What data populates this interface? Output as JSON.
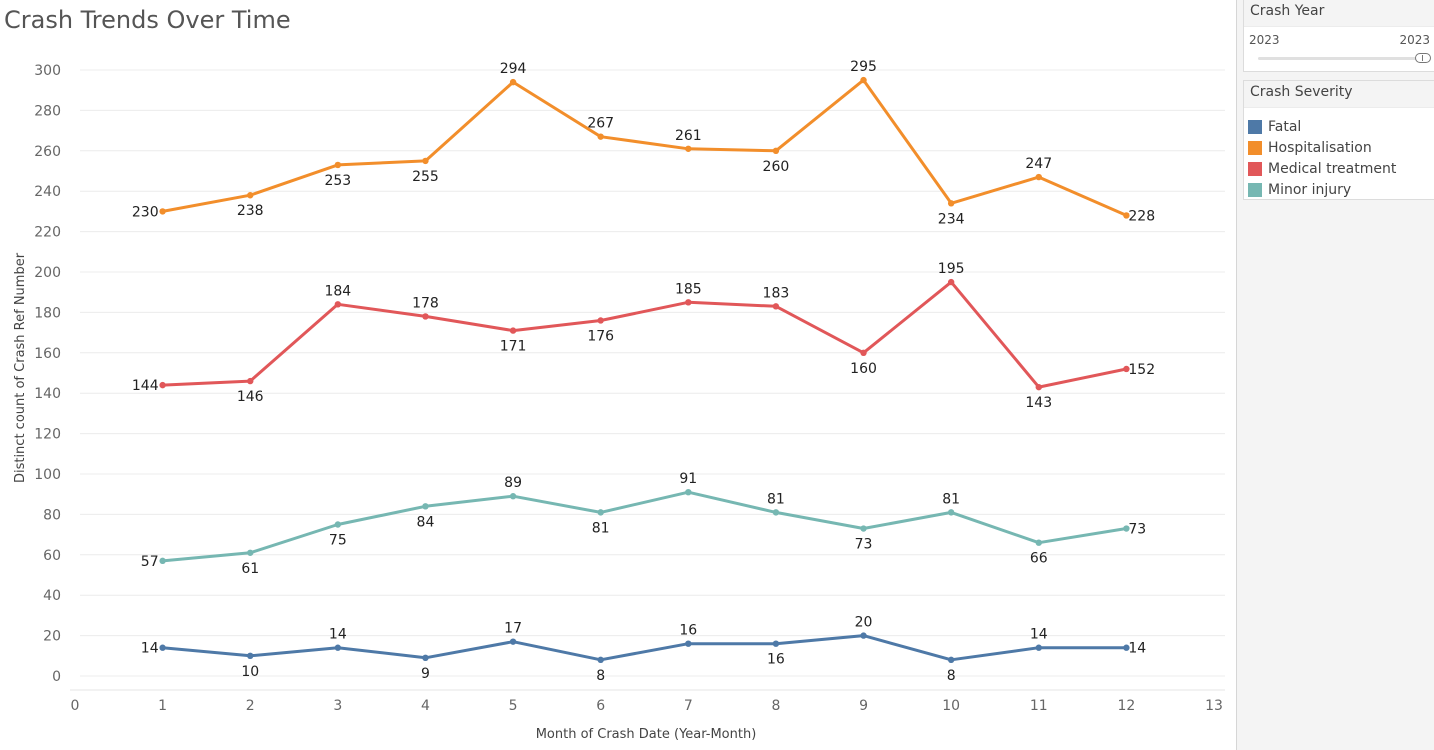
{
  "title": "Crash Trends Over Time",
  "filter": {
    "title": "Crash Year",
    "min_label": "2023",
    "max_label": "2023"
  },
  "legend": {
    "title": "Crash Severity",
    "items": [
      {
        "label": "Fatal",
        "color": "#4e79a7"
      },
      {
        "label": "Hospitalisation",
        "color": "#f28e2b"
      },
      {
        "label": "Medical treatment",
        "color": "#e15759"
      },
      {
        "label": "Minor injury",
        "color": "#76b7b2"
      }
    ]
  },
  "chart_data": {
    "type": "line",
    "xlabel": "Month of Crash Date (Year-Month)",
    "ylabel": "Distinct count of Crash Ref Number",
    "xlim": [
      0,
      13
    ],
    "ylim": [
      0,
      300
    ],
    "x_ticks": [
      0,
      1,
      2,
      3,
      4,
      5,
      6,
      7,
      8,
      9,
      10,
      11,
      12,
      13
    ],
    "y_ticks": [
      0,
      20,
      40,
      60,
      80,
      100,
      120,
      140,
      160,
      180,
      200,
      220,
      240,
      260,
      280,
      300
    ],
    "grid": true,
    "x": [
      1,
      2,
      3,
      4,
      5,
      6,
      7,
      8,
      9,
      10,
      11,
      12
    ],
    "series": [
      {
        "name": "Fatal",
        "color": "#4e79a7",
        "values": [
          14,
          10,
          14,
          9,
          17,
          8,
          16,
          16,
          20,
          8,
          14,
          14
        ]
      },
      {
        "name": "Hospitalisation",
        "color": "#f28e2b",
        "values": [
          230,
          238,
          253,
          255,
          294,
          267,
          261,
          260,
          295,
          234,
          247,
          228
        ]
      },
      {
        "name": "Medical treatment",
        "color": "#e15759",
        "values": [
          144,
          146,
          184,
          178,
          171,
          176,
          185,
          183,
          160,
          195,
          143,
          152
        ]
      },
      {
        "name": "Minor injury",
        "color": "#76b7b2",
        "values": [
          57,
          61,
          75,
          84,
          89,
          81,
          91,
          81,
          73,
          81,
          66,
          73
        ]
      }
    ]
  }
}
